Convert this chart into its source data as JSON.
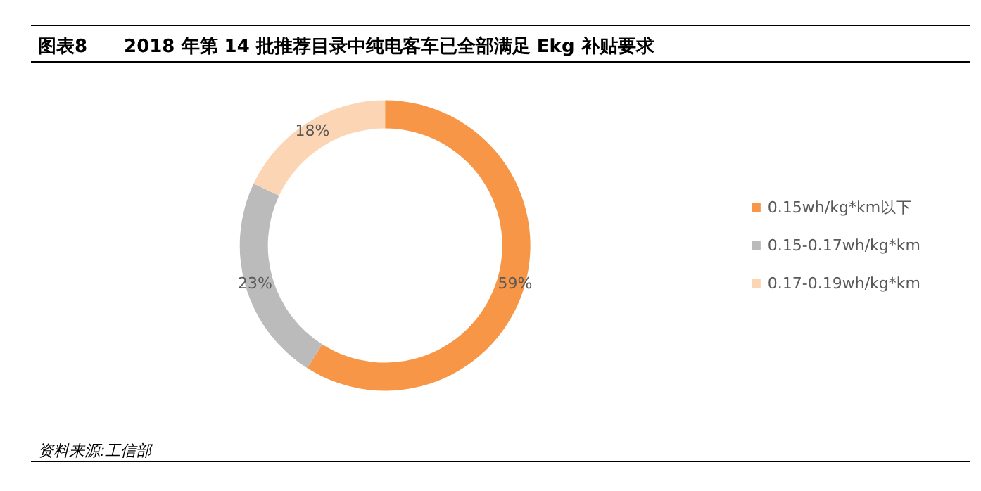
{
  "chart_data": {
    "type": "donut",
    "title": "图表8　　2018 年第 14 批推荐目录中纯电客车已全部满足 Ekg 补贴要求",
    "categories": [
      "0.15wh/kg*km以下",
      "0.15-0.17wh/kg*km",
      "0.17-0.19wh/kg*km"
    ],
    "values": [
      59,
      23,
      18
    ],
    "colors": [
      "#f79646",
      "#bbbbbb",
      "#fcd5b5"
    ],
    "value_labels": [
      "59%",
      "23%",
      "18%"
    ],
    "legend": "right",
    "annotations": [
      "资料来源:工信部"
    ]
  }
}
